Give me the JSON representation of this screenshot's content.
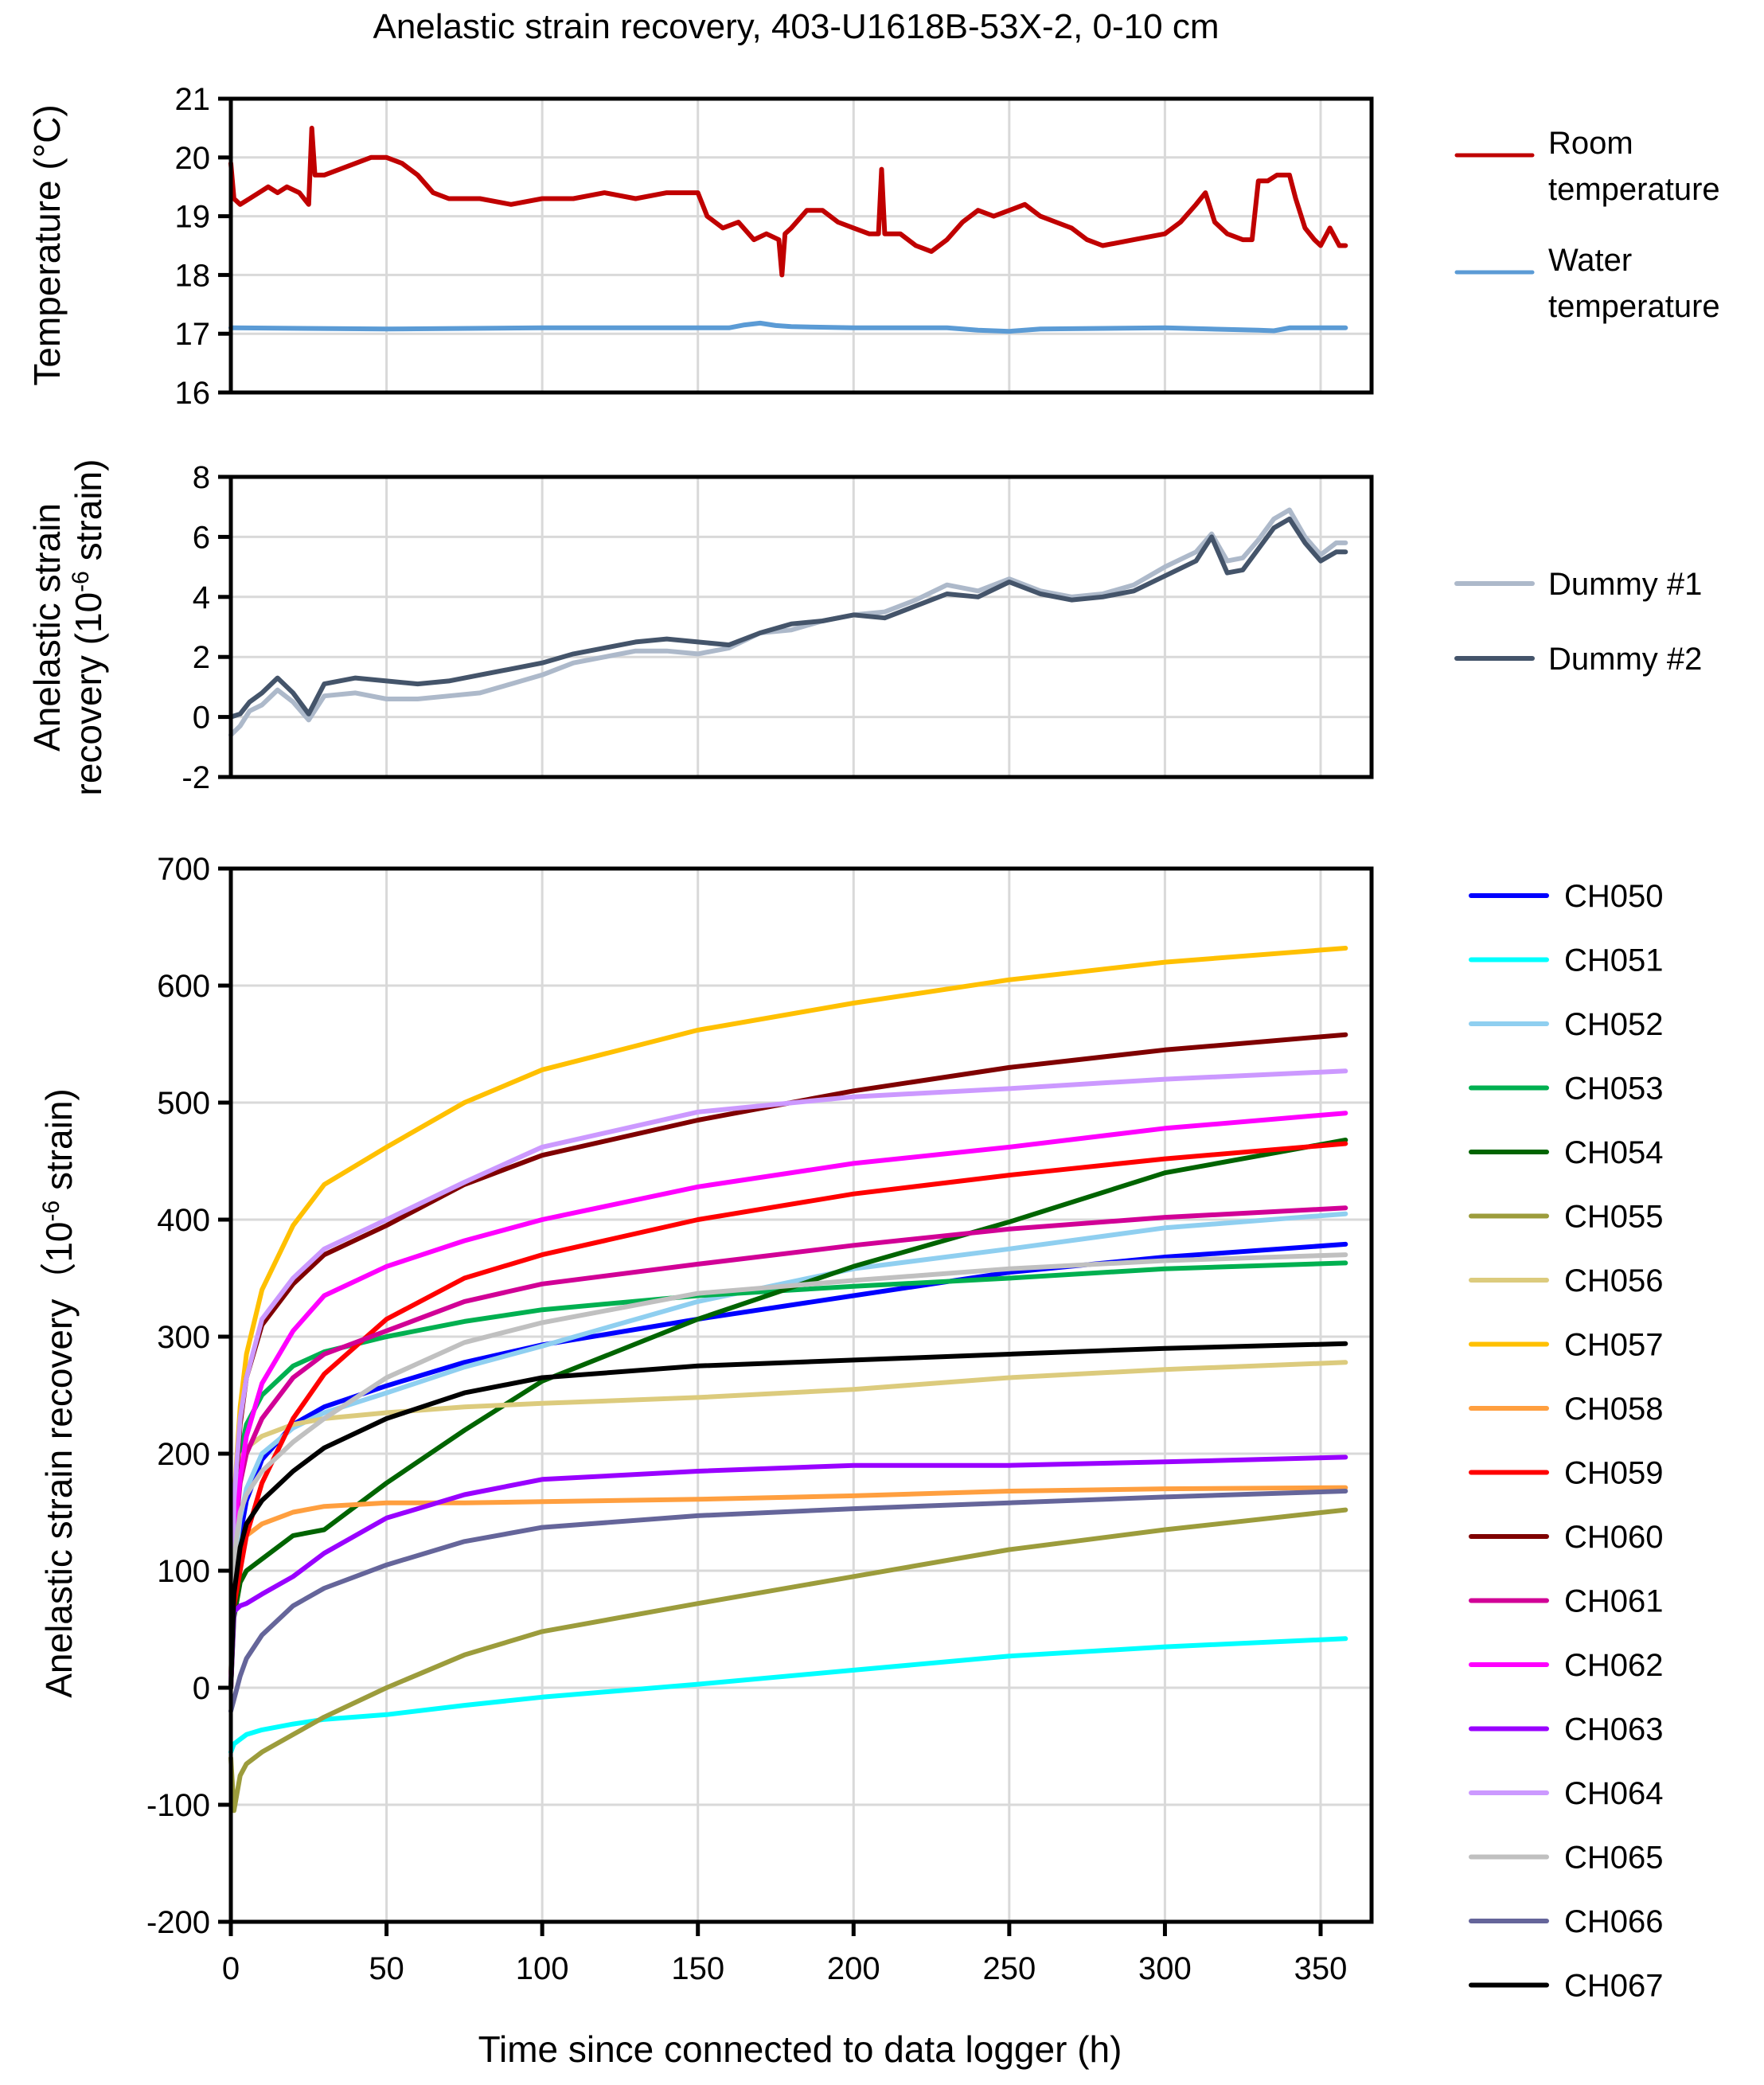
{
  "chart_data": [
    {
      "type": "line",
      "title": "Anelastic strain recovery, 403-U1618B-53X-2, 0-10 cm",
      "xlabel": "Time since connected to data logger (h)",
      "ylabel": "Temperature (°C)",
      "xlim": [
        0,
        370
      ],
      "ylim": [
        16,
        21
      ],
      "x_ticks": [
        0,
        50,
        100,
        150,
        200,
        250,
        300,
        350
      ],
      "y_ticks": [
        16,
        17,
        18,
        19,
        20,
        21
      ],
      "y_tick_labels": [
        "16",
        "17",
        "18",
        "19",
        "20",
        "21"
      ],
      "grid": true,
      "legend_position": "right",
      "series": [
        {
          "name": "Room temperature",
          "legend_lines": [
            "Room",
            "temperature"
          ],
          "color": "#c00000",
          "x": [
            0,
            1,
            3,
            6,
            9,
            12,
            15,
            18,
            22,
            25,
            26,
            27,
            30,
            35,
            40,
            45,
            50,
            55,
            60,
            65,
            70,
            80,
            90,
            100,
            110,
            120,
            130,
            140,
            150,
            153,
            158,
            163,
            168,
            172,
            176,
            177,
            178,
            180,
            185,
            190,
            195,
            200,
            205,
            208,
            209,
            210,
            215,
            220,
            225,
            230,
            235,
            240,
            245,
            250,
            255,
            260,
            265,
            270,
            275,
            280,
            290,
            300,
            305,
            310,
            313,
            316,
            320,
            325,
            328,
            330,
            333,
            336,
            340,
            342,
            345,
            348,
            350,
            353,
            356,
            358
          ],
          "y": [
            19.9,
            19.3,
            19.2,
            19.3,
            19.4,
            19.5,
            19.4,
            19.5,
            19.4,
            19.2,
            20.5,
            19.7,
            19.7,
            19.8,
            19.9,
            20.0,
            20.0,
            19.9,
            19.7,
            19.4,
            19.3,
            19.3,
            19.2,
            19.3,
            19.3,
            19.4,
            19.3,
            19.4,
            19.4,
            19.0,
            18.8,
            18.9,
            18.6,
            18.7,
            18.6,
            18.0,
            18.7,
            18.8,
            19.1,
            19.1,
            18.9,
            18.8,
            18.7,
            18.7,
            19.8,
            18.7,
            18.7,
            18.5,
            18.4,
            18.6,
            18.9,
            19.1,
            19.0,
            19.1,
            19.2,
            19.0,
            18.9,
            18.8,
            18.6,
            18.5,
            18.6,
            18.7,
            18.9,
            19.2,
            19.4,
            18.9,
            18.7,
            18.6,
            18.6,
            19.6,
            19.6,
            19.7,
            19.7,
            19.3,
            18.8,
            18.6,
            18.5,
            18.8,
            18.5,
            18.5
          ]
        },
        {
          "name": "Water temperature",
          "legend_lines": [
            "Water",
            "temperature"
          ],
          "color": "#5b9bd5",
          "x": [
            0,
            50,
            100,
            160,
            165,
            170,
            175,
            180,
            200,
            230,
            240,
            250,
            260,
            300,
            330,
            335,
            340,
            358
          ],
          "y": [
            17.1,
            17.08,
            17.1,
            17.1,
            17.15,
            17.18,
            17.14,
            17.12,
            17.1,
            17.1,
            17.06,
            17.04,
            17.08,
            17.1,
            17.06,
            17.05,
            17.1,
            17.1
          ]
        }
      ]
    },
    {
      "type": "line",
      "xlabel": "",
      "ylabel": "Anelastic strain recovery (10-6 strain)",
      "ylabel_lines": [
        "Anelastic strain",
        "recovery (10",
        "-6",
        " strain)"
      ],
      "xlim": [
        0,
        370
      ],
      "ylim": [
        -2,
        8
      ],
      "y_ticks": [
        -2,
        0,
        2,
        4,
        6,
        8
      ],
      "y_tick_labels": [
        "-2",
        "0",
        "2",
        "4",
        "6",
        "8"
      ],
      "grid": true,
      "legend_position": "right",
      "series": [
        {
          "name": "Dummy #1",
          "color": "#adb9ca",
          "x": [
            0,
            3,
            6,
            10,
            15,
            20,
            25,
            30,
            40,
            50,
            60,
            70,
            80,
            90,
            100,
            110,
            120,
            130,
            140,
            150,
            160,
            170,
            180,
            190,
            200,
            210,
            220,
            230,
            240,
            250,
            260,
            270,
            280,
            290,
            300,
            310,
            315,
            320,
            325,
            330,
            335,
            340,
            345,
            350,
            355,
            358
          ],
          "y": [
            -0.6,
            -0.3,
            0.2,
            0.4,
            0.9,
            0.5,
            -0.1,
            0.7,
            0.8,
            0.6,
            0.6,
            0.7,
            0.8,
            1.1,
            1.4,
            1.8,
            2.0,
            2.2,
            2.2,
            2.1,
            2.3,
            2.8,
            2.9,
            3.2,
            3.4,
            3.5,
            3.9,
            4.4,
            4.2,
            4.6,
            4.2,
            4.0,
            4.1,
            4.4,
            5.0,
            5.5,
            6.1,
            5.2,
            5.3,
            5.9,
            6.6,
            6.9,
            6.0,
            5.4,
            5.8,
            5.8
          ]
        },
        {
          "name": "Dummy #2",
          "color": "#44546a",
          "x": [
            0,
            3,
            6,
            10,
            15,
            20,
            25,
            30,
            40,
            50,
            60,
            70,
            80,
            90,
            100,
            110,
            120,
            130,
            140,
            150,
            160,
            170,
            180,
            190,
            200,
            210,
            220,
            230,
            240,
            250,
            260,
            270,
            280,
            290,
            300,
            310,
            315,
            320,
            325,
            330,
            335,
            340,
            345,
            350,
            355,
            358
          ],
          "y": [
            0.0,
            0.1,
            0.5,
            0.8,
            1.3,
            0.8,
            0.1,
            1.1,
            1.3,
            1.2,
            1.1,
            1.2,
            1.4,
            1.6,
            1.8,
            2.1,
            2.3,
            2.5,
            2.6,
            2.5,
            2.4,
            2.8,
            3.1,
            3.2,
            3.4,
            3.3,
            3.7,
            4.1,
            4.0,
            4.5,
            4.1,
            3.9,
            4.0,
            4.2,
            4.7,
            5.2,
            6.0,
            4.8,
            4.9,
            5.6,
            6.3,
            6.6,
            5.8,
            5.2,
            5.5,
            5.5
          ]
        }
      ]
    },
    {
      "type": "line",
      "xlabel": "Time since connected to data logger (h)",
      "ylabel": "Anelastic strain recovery (10-6 strain)",
      "xlim": [
        0,
        370
      ],
      "ylim": [
        -200,
        700
      ],
      "x_ticks": [
        0,
        50,
        100,
        150,
        200,
        250,
        300,
        350
      ],
      "x_tick_labels": [
        "0",
        "50",
        "100",
        "150",
        "200",
        "250",
        "300",
        "350"
      ],
      "y_ticks": [
        -200,
        -100,
        0,
        100,
        200,
        300,
        400,
        500,
        600,
        700
      ],
      "y_tick_labels": [
        "-200",
        "-100",
        "0",
        "100",
        "200",
        "300",
        "400",
        "500",
        "600",
        "700"
      ],
      "grid": true,
      "legend_position": "right",
      "x": [
        0,
        1,
        3,
        5,
        10,
        20,
        30,
        50,
        75,
        100,
        150,
        200,
        250,
        300,
        358
      ],
      "series": [
        {
          "name": "CH050",
          "color": "#0000ff",
          "y": [
            0,
            90,
            130,
            160,
            195,
            225,
            240,
            258,
            278,
            293,
            315,
            335,
            355,
            368,
            379
          ]
        },
        {
          "name": "CH051",
          "color": "#00ffff",
          "y": [
            -55,
            -48,
            -44,
            -40,
            -36,
            -31,
            -27,
            -23,
            -15,
            -8,
            3,
            15,
            27,
            35,
            42
          ]
        },
        {
          "name": "CH052",
          "color": "#8fcff0",
          "y": [
            0,
            100,
            145,
            170,
            200,
            222,
            235,
            252,
            274,
            292,
            330,
            358,
            375,
            393,
            405
          ]
        },
        {
          "name": "CH053",
          "color": "#00b050",
          "y": [
            0,
            150,
            200,
            225,
            250,
            275,
            287,
            300,
            313,
            323,
            335,
            343,
            350,
            358,
            363
          ]
        },
        {
          "name": "CH054",
          "color": "#006400",
          "y": [
            0,
            60,
            90,
            100,
            110,
            130,
            135,
            175,
            220,
            262,
            315,
            360,
            398,
            440,
            468
          ]
        },
        {
          "name": "CH055",
          "color": "#9c9c3c",
          "y": [
            -60,
            -105,
            -75,
            -65,
            -55,
            -40,
            -25,
            0,
            28,
            48,
            72,
            95,
            118,
            135,
            152
          ]
        },
        {
          "name": "CH056",
          "color": "#dccb7d",
          "y": [
            0,
            150,
            195,
            205,
            215,
            225,
            230,
            235,
            240,
            243,
            248,
            255,
            265,
            272,
            278
          ]
        },
        {
          "name": "CH057",
          "color": "#ffc000",
          "y": [
            0,
            160,
            240,
            285,
            340,
            395,
            430,
            462,
            500,
            528,
            562,
            585,
            605,
            620,
            632
          ]
        },
        {
          "name": "CH058",
          "color": "#ff9f3f",
          "y": [
            0,
            100,
            120,
            130,
            140,
            150,
            155,
            158,
            158,
            159,
            161,
            164,
            168,
            170,
            171
          ]
        },
        {
          "name": "CH059",
          "color": "#ff0000",
          "y": [
            0,
            70,
            100,
            130,
            175,
            230,
            268,
            315,
            350,
            370,
            400,
            422,
            438,
            452,
            465
          ]
        },
        {
          "name": "CH060",
          "color": "#7f0000",
          "y": [
            0,
            150,
            225,
            265,
            310,
            345,
            370,
            395,
            430,
            455,
            485,
            510,
            530,
            545,
            558
          ]
        },
        {
          "name": "CH061",
          "color": "#d10096",
          "y": [
            0,
            120,
            175,
            200,
            230,
            265,
            285,
            305,
            330,
            345,
            362,
            378,
            392,
            402,
            410
          ]
        },
        {
          "name": "CH062",
          "color": "#ff00ff",
          "y": [
            0,
            130,
            180,
            215,
            260,
            305,
            335,
            360,
            382,
            400,
            428,
            448,
            462,
            478,
            491
          ]
        },
        {
          "name": "CH063",
          "color": "#9900ff",
          "y": [
            0,
            65,
            70,
            72,
            80,
            95,
            115,
            145,
            165,
            178,
            185,
            190,
            190,
            193,
            197
          ]
        },
        {
          "name": "CH064",
          "color": "#cc99ff",
          "y": [
            0,
            160,
            230,
            265,
            315,
            350,
            375,
            400,
            432,
            462,
            492,
            505,
            512,
            520,
            527
          ]
        },
        {
          "name": "CH065",
          "color": "#c0c0c0",
          "y": [
            0,
            110,
            150,
            165,
            185,
            210,
            230,
            265,
            295,
            312,
            337,
            348,
            358,
            365,
            370
          ]
        },
        {
          "name": "CH066",
          "color": "#65659a",
          "y": [
            -20,
            -10,
            10,
            25,
            45,
            70,
            85,
            105,
            125,
            137,
            147,
            153,
            158,
            163,
            168
          ]
        },
        {
          "name": "CH067",
          "color": "#000000",
          "y": [
            0,
            80,
            120,
            140,
            160,
            185,
            205,
            230,
            252,
            265,
            275,
            280,
            285,
            290,
            294
          ]
        }
      ]
    }
  ],
  "labels": {
    "title": "Anelastic strain recovery, 403-U1618B-53X-2, 0-10 cm",
    "top_ylabel": "Temperature (°C)",
    "mid_ylabel_line1": "Anelastic strain",
    "mid_ylabel_line2_pre": "recovery (10",
    "mid_ylabel_sup": "-6",
    "mid_ylabel_line2_post": " strain)",
    "bot_ylabel_pre": "Anelastic strain recovery（10",
    "bot_ylabel_sup": "-6",
    "bot_ylabel_post": " strain)",
    "xlabel": "Time since connected to data logger (h)"
  }
}
